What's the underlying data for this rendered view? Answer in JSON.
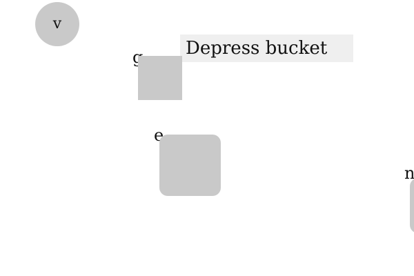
{
  "buttons": {
    "v_label": "v",
    "g_label": "g",
    "e_label": "e",
    "n_label": "n"
  },
  "banner": {
    "text": "Depress bucket"
  }
}
